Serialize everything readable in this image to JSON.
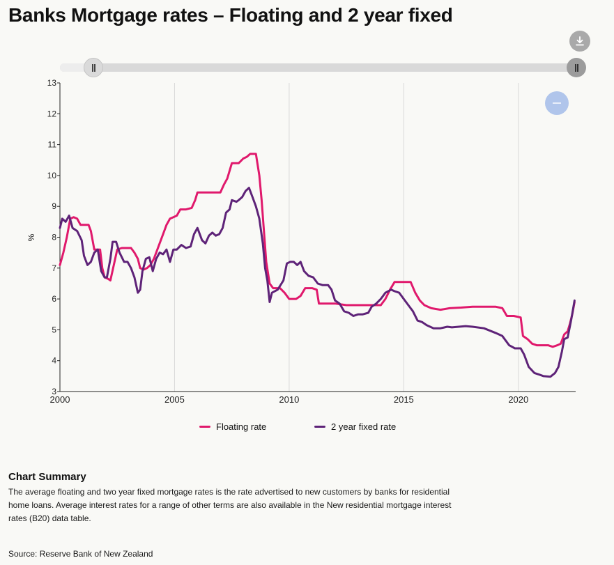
{
  "page": {
    "title": "Banks Mortgage rates – Floating and 2 year fixed",
    "summary_title": "Chart Summary",
    "summary_text": "The average floating and two year fixed mortgage rates is the rate advertised to new customers by banks for residential home loans. Average interest rates for a range of other terms are also available in the New residential mortgage interest rates (B20) data table.",
    "source": "Source: Reserve Bank of New Zealand"
  },
  "icons": {
    "download": "download-icon",
    "zoom_out": "minus-icon",
    "slider_grip": "grip-icon"
  },
  "colors": {
    "floating": "#e0196c",
    "fixed": "#5e2378",
    "grid": "#d9d9d9",
    "axis": "#222222"
  },
  "chart_data": {
    "type": "line",
    "xlabel": "",
    "ylabel": "%",
    "xlim": [
      2000,
      2022.5
    ],
    "ylim": [
      3,
      13
    ],
    "x_ticks": [
      2000,
      2005,
      2010,
      2015,
      2020
    ],
    "y_ticks": [
      3,
      4,
      5,
      6,
      7,
      8,
      9,
      10,
      11,
      12,
      13
    ],
    "grid": "vertical",
    "legend": "bottom-center",
    "series": [
      {
        "name": "Floating rate",
        "color": "#e0196c",
        "points": [
          [
            2000.0,
            7.1
          ],
          [
            2000.15,
            7.5
          ],
          [
            2000.3,
            8.0
          ],
          [
            2000.45,
            8.6
          ],
          [
            2000.6,
            8.65
          ],
          [
            2000.75,
            8.6
          ],
          [
            2000.9,
            8.4
          ],
          [
            2001.1,
            8.4
          ],
          [
            2001.25,
            8.4
          ],
          [
            2001.35,
            8.2
          ],
          [
            2001.5,
            7.6
          ],
          [
            2001.65,
            7.6
          ],
          [
            2001.75,
            7.6
          ],
          [
            2001.85,
            7.0
          ],
          [
            2001.95,
            6.7
          ],
          [
            2002.1,
            6.65
          ],
          [
            2002.2,
            6.6
          ],
          [
            2002.35,
            7.1
          ],
          [
            2002.5,
            7.6
          ],
          [
            2002.7,
            7.65
          ],
          [
            2002.9,
            7.65
          ],
          [
            2003.1,
            7.65
          ],
          [
            2003.25,
            7.5
          ],
          [
            2003.4,
            7.3
          ],
          [
            2003.5,
            7.0
          ],
          [
            2003.65,
            6.95
          ],
          [
            2003.8,
            7.0
          ],
          [
            2003.95,
            7.1
          ],
          [
            2004.1,
            7.3
          ],
          [
            2004.3,
            7.7
          ],
          [
            2004.5,
            8.1
          ],
          [
            2004.65,
            8.4
          ],
          [
            2004.8,
            8.6
          ],
          [
            2004.95,
            8.65
          ],
          [
            2005.1,
            8.7
          ],
          [
            2005.25,
            8.9
          ],
          [
            2005.5,
            8.9
          ],
          [
            2005.75,
            8.95
          ],
          [
            2005.9,
            9.2
          ],
          [
            2006.0,
            9.45
          ],
          [
            2006.4,
            9.45
          ],
          [
            2006.7,
            9.45
          ],
          [
            2007.0,
            9.45
          ],
          [
            2007.15,
            9.7
          ],
          [
            2007.3,
            9.9
          ],
          [
            2007.5,
            10.4
          ],
          [
            2007.8,
            10.4
          ],
          [
            2008.0,
            10.55
          ],
          [
            2008.15,
            10.6
          ],
          [
            2008.3,
            10.7
          ],
          [
            2008.55,
            10.7
          ],
          [
            2008.7,
            10.0
          ],
          [
            2008.8,
            9.2
          ],
          [
            2008.9,
            8.2
          ],
          [
            2009.0,
            7.2
          ],
          [
            2009.15,
            6.5
          ],
          [
            2009.3,
            6.35
          ],
          [
            2009.6,
            6.35
          ],
          [
            2009.8,
            6.2
          ],
          [
            2010.0,
            6.0
          ],
          [
            2010.3,
            6.0
          ],
          [
            2010.5,
            6.1
          ],
          [
            2010.7,
            6.35
          ],
          [
            2011.0,
            6.35
          ],
          [
            2011.2,
            6.3
          ],
          [
            2011.3,
            5.85
          ],
          [
            2011.6,
            5.85
          ],
          [
            2012.0,
            5.85
          ],
          [
            2012.5,
            5.8
          ],
          [
            2013.0,
            5.8
          ],
          [
            2013.5,
            5.8
          ],
          [
            2014.0,
            5.8
          ],
          [
            2014.2,
            6.0
          ],
          [
            2014.4,
            6.3
          ],
          [
            2014.6,
            6.55
          ],
          [
            2015.0,
            6.55
          ],
          [
            2015.3,
            6.55
          ],
          [
            2015.5,
            6.2
          ],
          [
            2015.7,
            5.95
          ],
          [
            2015.9,
            5.8
          ],
          [
            2016.2,
            5.7
          ],
          [
            2016.6,
            5.65
          ],
          [
            2017.0,
            5.7
          ],
          [
            2017.5,
            5.72
          ],
          [
            2018.0,
            5.75
          ],
          [
            2018.5,
            5.75
          ],
          [
            2019.0,
            5.75
          ],
          [
            2019.3,
            5.7
          ],
          [
            2019.5,
            5.45
          ],
          [
            2019.8,
            5.45
          ],
          [
            2020.1,
            5.4
          ],
          [
            2020.2,
            4.8
          ],
          [
            2020.4,
            4.7
          ],
          [
            2020.6,
            4.55
          ],
          [
            2020.8,
            4.5
          ],
          [
            2021.0,
            4.5
          ],
          [
            2021.3,
            4.5
          ],
          [
            2021.5,
            4.45
          ],
          [
            2021.7,
            4.5
          ],
          [
            2021.85,
            4.55
          ],
          [
            2022.0,
            4.85
          ],
          [
            2022.15,
            4.95
          ],
          [
            2022.25,
            5.2
          ],
          [
            2022.35,
            5.5
          ],
          [
            2022.45,
            5.9
          ]
        ]
      },
      {
        "name": "2 year fixed rate",
        "color": "#5e2378",
        "points": [
          [
            2000.0,
            8.3
          ],
          [
            2000.1,
            8.6
          ],
          [
            2000.25,
            8.5
          ],
          [
            2000.4,
            8.7
          ],
          [
            2000.55,
            8.3
          ],
          [
            2000.75,
            8.2
          ],
          [
            2000.95,
            7.9
          ],
          [
            2001.05,
            7.4
          ],
          [
            2001.2,
            7.1
          ],
          [
            2001.35,
            7.2
          ],
          [
            2001.5,
            7.5
          ],
          [
            2001.65,
            7.6
          ],
          [
            2001.8,
            6.9
          ],
          [
            2001.95,
            6.7
          ],
          [
            2002.05,
            6.7
          ],
          [
            2002.2,
            7.3
          ],
          [
            2002.3,
            7.85
          ],
          [
            2002.45,
            7.85
          ],
          [
            2002.6,
            7.5
          ],
          [
            2002.8,
            7.2
          ],
          [
            2002.95,
            7.2
          ],
          [
            2003.1,
            7.0
          ],
          [
            2003.25,
            6.7
          ],
          [
            2003.4,
            6.2
          ],
          [
            2003.5,
            6.3
          ],
          [
            2003.6,
            6.9
          ],
          [
            2003.75,
            7.3
          ],
          [
            2003.9,
            7.35
          ],
          [
            2004.05,
            6.9
          ],
          [
            2004.2,
            7.3
          ],
          [
            2004.35,
            7.5
          ],
          [
            2004.5,
            7.45
          ],
          [
            2004.65,
            7.6
          ],
          [
            2004.8,
            7.2
          ],
          [
            2004.95,
            7.6
          ],
          [
            2005.1,
            7.6
          ],
          [
            2005.3,
            7.75
          ],
          [
            2005.5,
            7.65
          ],
          [
            2005.7,
            7.7
          ],
          [
            2005.85,
            8.1
          ],
          [
            2006.0,
            8.3
          ],
          [
            2006.2,
            7.9
          ],
          [
            2006.35,
            7.8
          ],
          [
            2006.5,
            8.05
          ],
          [
            2006.65,
            8.15
          ],
          [
            2006.8,
            8.05
          ],
          [
            2006.95,
            8.1
          ],
          [
            2007.1,
            8.3
          ],
          [
            2007.25,
            8.8
          ],
          [
            2007.4,
            8.9
          ],
          [
            2007.5,
            9.2
          ],
          [
            2007.7,
            9.15
          ],
          [
            2007.8,
            9.2
          ],
          [
            2007.95,
            9.3
          ],
          [
            2008.1,
            9.5
          ],
          [
            2008.25,
            9.6
          ],
          [
            2008.4,
            9.3
          ],
          [
            2008.55,
            9.0
          ],
          [
            2008.7,
            8.6
          ],
          [
            2008.85,
            7.8
          ],
          [
            2008.95,
            7.0
          ],
          [
            2009.05,
            6.6
          ],
          [
            2009.15,
            5.9
          ],
          [
            2009.25,
            6.2
          ],
          [
            2009.5,
            6.3
          ],
          [
            2009.75,
            6.6
          ],
          [
            2009.9,
            7.15
          ],
          [
            2010.05,
            7.2
          ],
          [
            2010.2,
            7.2
          ],
          [
            2010.35,
            7.1
          ],
          [
            2010.5,
            7.2
          ],
          [
            2010.65,
            6.9
          ],
          [
            2010.85,
            6.75
          ],
          [
            2011.05,
            6.7
          ],
          [
            2011.25,
            6.5
          ],
          [
            2011.45,
            6.45
          ],
          [
            2011.7,
            6.45
          ],
          [
            2011.85,
            6.3
          ],
          [
            2012.0,
            5.95
          ],
          [
            2012.2,
            5.85
          ],
          [
            2012.4,
            5.6
          ],
          [
            2012.6,
            5.55
          ],
          [
            2012.8,
            5.45
          ],
          [
            2013.0,
            5.5
          ],
          [
            2013.2,
            5.5
          ],
          [
            2013.45,
            5.55
          ],
          [
            2013.6,
            5.75
          ],
          [
            2013.8,
            5.85
          ],
          [
            2014.0,
            6.0
          ],
          [
            2014.2,
            6.2
          ],
          [
            2014.45,
            6.3
          ],
          [
            2014.6,
            6.25
          ],
          [
            2014.8,
            6.2
          ],
          [
            2015.0,
            6.0
          ],
          [
            2015.2,
            5.8
          ],
          [
            2015.4,
            5.6
          ],
          [
            2015.6,
            5.3
          ],
          [
            2015.8,
            5.25
          ],
          [
            2016.0,
            5.15
          ],
          [
            2016.3,
            5.05
          ],
          [
            2016.6,
            5.05
          ],
          [
            2016.9,
            5.1
          ],
          [
            2017.1,
            5.08
          ],
          [
            2017.4,
            5.1
          ],
          [
            2017.7,
            5.12
          ],
          [
            2018.0,
            5.1
          ],
          [
            2018.5,
            5.05
          ],
          [
            2019.0,
            4.9
          ],
          [
            2019.3,
            4.8
          ],
          [
            2019.6,
            4.5
          ],
          [
            2019.85,
            4.4
          ],
          [
            2020.1,
            4.4
          ],
          [
            2020.25,
            4.2
          ],
          [
            2020.45,
            3.8
          ],
          [
            2020.7,
            3.6
          ],
          [
            2020.9,
            3.55
          ],
          [
            2021.1,
            3.5
          ],
          [
            2021.4,
            3.48
          ],
          [
            2021.6,
            3.6
          ],
          [
            2021.75,
            3.8
          ],
          [
            2021.9,
            4.3
          ],
          [
            2022.0,
            4.7
          ],
          [
            2022.15,
            4.75
          ],
          [
            2022.3,
            5.3
          ],
          [
            2022.45,
            5.95
          ]
        ]
      }
    ]
  }
}
